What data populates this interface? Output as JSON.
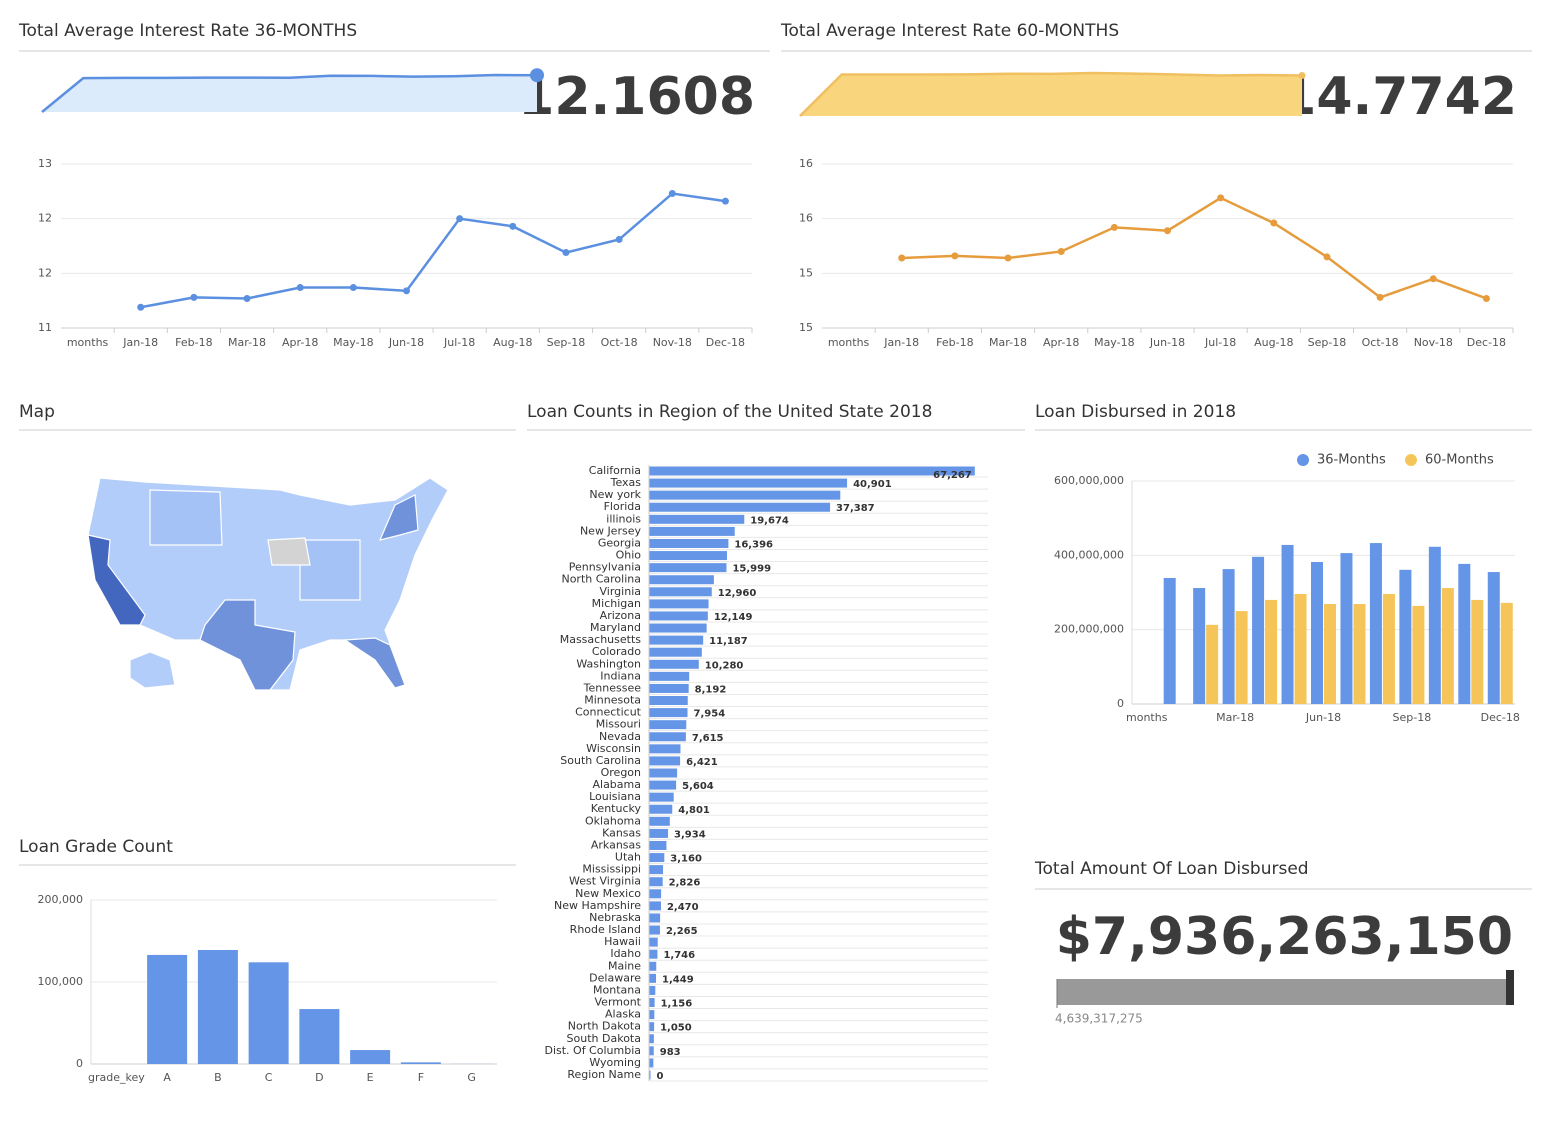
{
  "chart_data": [
    {
      "type": "line",
      "title": "Total Average Interest Rate 36-MONTHS",
      "value": 12.1608,
      "color": "#5b8fe0",
      "area_color": "#dcebfc",
      "categories": [
        "months",
        "Jan-18",
        "Feb-18",
        "Mar-18",
        "Apr-18",
        "May-18",
        "Jun-18",
        "Jul-18",
        "Aug-18",
        "Sep-18",
        "Oct-18",
        "Nov-18",
        "Dec-18"
      ],
      "values": [
        null,
        11.19,
        11.28,
        11.27,
        11.37,
        11.37,
        11.34,
        12.0,
        11.93,
        11.69,
        11.81,
        12.23,
        12.16
      ],
      "ylim": [
        11,
        12.5
      ],
      "yticks": [
        11,
        {
          "value": 11.5,
          "label": "12"
        },
        12,
        {
          "value": 12.5,
          "label": "13"
        }
      ],
      "grid": true
    },
    {
      "type": "line",
      "title": "Total Average Interest Rate 60-MONTHS",
      "value": 14.7742,
      "color": "#e69c3c",
      "area_color": "#f9d57e",
      "categories": [
        "months",
        "Jan-18",
        "Feb-18",
        "Mar-18",
        "Apr-18",
        "May-18",
        "Jun-18",
        "Jul-18",
        "Aug-18",
        "Sep-18",
        "Oct-18",
        "Nov-18",
        "Dec-18"
      ],
      "values": [
        null,
        15.14,
        15.16,
        15.14,
        15.2,
        15.42,
        15.39,
        15.69,
        15.46,
        15.15,
        14.78,
        14.95,
        14.77
      ],
      "ylim": [
        14.5,
        16
      ],
      "yticks": [
        {
          "value": 14.5,
          "label": "15"
        },
        15,
        {
          "value": 15.5,
          "label": "16"
        },
        16
      ],
      "grid": true
    },
    {
      "type": "map",
      "title": "Map"
    },
    {
      "type": "bar",
      "orientation": "horizontal",
      "title": "Loan Counts in Region of the United State 2018",
      "color": "#6495e6",
      "categories": [
        "California",
        "Texas",
        "New york",
        "Florida",
        "illinois",
        "New Jersey",
        "Georgia",
        "Ohio",
        "Pennsylvania",
        "North Carolina",
        "Virginia",
        "Michigan",
        "Arizona",
        "Maryland",
        "Massachusetts",
        "Colorado",
        "Washington",
        "Indiana",
        "Tennessee",
        "Minnesota",
        "Connecticut",
        "Missouri",
        "Nevada",
        "Wisconsin",
        "South Carolina",
        "Oregon",
        "Alabama",
        "Louisiana",
        "Kentucky",
        "Oklahoma",
        "Kansas",
        "Arkansas",
        "Utah",
        "Mississippi",
        "West Virginia",
        "New Mexico",
        "New Hampshire",
        "Nebraska",
        "Rhode Island",
        "Hawaii",
        "Idaho",
        "Maine",
        "Delaware",
        "Montana",
        "Vermont",
        "Alaska",
        "North Dakota",
        "South Dakota",
        "Dist. Of Columbia",
        "Wyoming",
        "Region Name"
      ],
      "values": [
        67267,
        40901,
        39500,
        37387,
        19674,
        17700,
        16396,
        16100,
        15999,
        13400,
        12960,
        12300,
        12149,
        11900,
        11187,
        10900,
        10280,
        8300,
        8192,
        8000,
        7954,
        7700,
        7615,
        6500,
        6421,
        5800,
        5604,
        5100,
        4801,
        4300,
        3934,
        3600,
        3160,
        2900,
        2826,
        2500,
        2470,
        2300,
        2265,
        1800,
        1746,
        1500,
        1449,
        1300,
        1156,
        1100,
        1050,
        1000,
        983,
        900,
        0
      ],
      "value_labels": [
        "67,267",
        "40,901",
        null,
        "37,387",
        "19,674",
        null,
        "16,396",
        null,
        "15,999",
        null,
        "12,960",
        null,
        "12,149",
        null,
        "11,187",
        null,
        "10,280",
        null,
        "8,192",
        null,
        "7,954",
        null,
        "7,615",
        null,
        "6,421",
        null,
        "5,604",
        null,
        "4,801",
        null,
        "3,934",
        null,
        "3,160",
        null,
        "2,826",
        null,
        "2,470",
        null,
        "2,265",
        null,
        "1,746",
        null,
        "1,449",
        null,
        "1,156",
        null,
        "1,050",
        null,
        "983",
        null,
        "0"
      ],
      "xlim": [
        0,
        70000
      ]
    },
    {
      "type": "bar",
      "title": "Loan Disbursed in 2018",
      "legend": "top",
      "categories": [
        "months",
        null,
        null,
        "Mar-18",
        null,
        null,
        "Jun-18",
        null,
        null,
        "Sep-18",
        null,
        null,
        "Dec-18"
      ],
      "series": [
        {
          "name": "36-Months",
          "color": "#6495e6",
          "values": [
            null,
            339000000,
            312000000,
            363000000,
            396000000,
            428000000,
            382000000,
            406000000,
            433000000,
            361000000,
            423000000,
            377000000,
            355000000
          ]
        },
        {
          "name": "60-Months",
          "color": "#f5c55a",
          "values": [
            null,
            null,
            213000000,
            250000000,
            280000000,
            296000000,
            269000000,
            269000000,
            296000000,
            264000000,
            312000000,
            280000000,
            272000000
          ]
        }
      ],
      "ylim": [
        0,
        600000000
      ],
      "yticks": [
        0,
        {
          "value": 200000000,
          "label": "200,000,000"
        },
        {
          "value": 400000000,
          "label": "400,000,000"
        },
        {
          "value": 600000000,
          "label": "600,000,000"
        }
      ],
      "grid": true
    },
    {
      "type": "bar",
      "title": "Loan Grade Count",
      "color": "#6495e6",
      "categories": [
        "grade_key",
        "A",
        "B",
        "C",
        "D",
        "E",
        "F",
        "G"
      ],
      "values": [
        null,
        133000,
        139000,
        124000,
        67000,
        17000,
        2000,
        100
      ],
      "ylim": [
        0,
        200000
      ],
      "yticks": [
        0,
        {
          "value": 100000,
          "label": "100,000"
        },
        {
          "value": 200000,
          "label": "200,000"
        }
      ],
      "grid": true
    },
    {
      "type": "kpi",
      "title": "Total Amount Of Loan Disbursed",
      "value": 7936263150,
      "value_label": "$7,936,263,150",
      "min": 4639317275,
      "min_label": "4,639,317,275"
    }
  ]
}
